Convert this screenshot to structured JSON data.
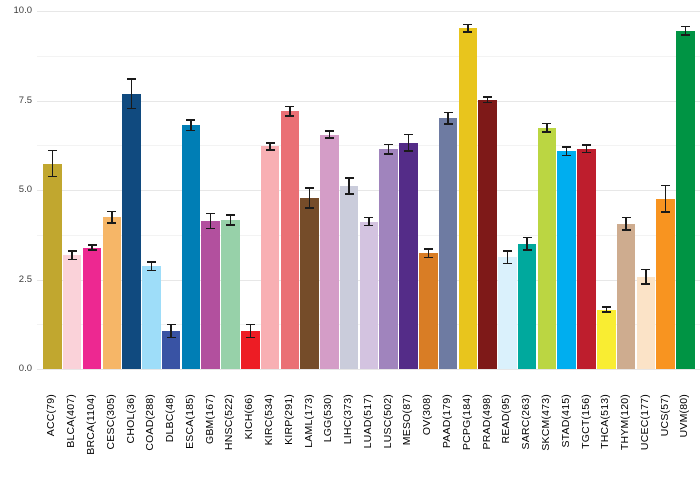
{
  "chart_data": {
    "type": "bar",
    "title": "",
    "xlabel": "",
    "ylabel": "",
    "legend": "none",
    "grid": "horizontal, light-gray major and fainter minor lines",
    "x_label_rotation": 90,
    "error_bars": true,
    "ylim": [
      0,
      10
    ],
    "y_ticks": [
      0,
      2.5,
      5,
      7.5,
      10
    ],
    "y_tick_labels": [
      "0.0",
      "2.5",
      "5.0",
      "7.5",
      "10.0"
    ],
    "y_minor_ticks": [
      1.25,
      3.75,
      6.25,
      8.75
    ],
    "categories": [
      "ACC(79)",
      "BLCA(407)",
      "BRCA(1104)",
      "CESC(305)",
      "CHOL(36)",
      "COAD(288)",
      "DLBC(48)",
      "ESCA(185)",
      "GBM(167)",
      "HNSC(522)",
      "KICH(66)",
      "KIRC(534)",
      "KIRP(291)",
      "LAML(173)",
      "LGG(530)",
      "LIHC(373)",
      "LUAD(517)",
      "LUSC(502)",
      "MESO(87)",
      "OV(308)",
      "PAAD(179)",
      "PCPG(184)",
      "PRAD(498)",
      "READ(95)",
      "SARC(263)",
      "SKCM(473)",
      "STAD(415)",
      "TGCT(156)",
      "THCA(513)",
      "THYM(120)",
      "UCEC(177)",
      "UCS(57)",
      "UVM(80)"
    ],
    "values": [
      5.74,
      3.18,
      3.39,
      4.24,
      7.69,
      2.87,
      1.06,
      6.81,
      4.13,
      4.16,
      1.06,
      6.22,
      7.2,
      4.78,
      6.55,
      5.11,
      4.12,
      6.14,
      6.32,
      3.24,
      7.01,
      9.52,
      7.52,
      3.12,
      3.5,
      6.74,
      6.08,
      6.15,
      1.66,
      4.06,
      2.58,
      4.75,
      9.45
    ],
    "errors": [
      0.36,
      0.12,
      0.07,
      0.16,
      0.41,
      0.12,
      0.18,
      0.15,
      0.21,
      0.14,
      0.18,
      0.1,
      0.13,
      0.28,
      0.1,
      0.22,
      0.11,
      0.13,
      0.23,
      0.12,
      0.16,
      0.1,
      0.08,
      0.17,
      0.17,
      0.12,
      0.12,
      0.1,
      0.07,
      0.17,
      0.2,
      0.37,
      0.12
    ],
    "colors": [
      "#C1A72F",
      "#FAD2D9",
      "#ED2891",
      "#F6B667",
      "#104A7F",
      "#9EDDF9",
      "#3953A4",
      "#007EB5",
      "#B2509E",
      "#97D1A9",
      "#ED1C24",
      "#F8AFB3",
      "#EA7075",
      "#754C29",
      "#D49DC7",
      "#CACCDB",
      "#D3C3E0",
      "#A084BD",
      "#542C88",
      "#D97D25",
      "#6E7BA2",
      "#E8C51D",
      "#7E1918",
      "#DAF1FC",
      "#00A99D",
      "#BBD642",
      "#00AEEF",
      "#BE1E2D",
      "#F9ED32",
      "#CEAC8F",
      "#FBE3C7",
      "#F89420",
      "#009444"
    ],
    "gridline_major_color": "#e7e7e7",
    "gridline_minor_color": "#f3f3f3",
    "error_bar_color": "#1a1a1a"
  }
}
